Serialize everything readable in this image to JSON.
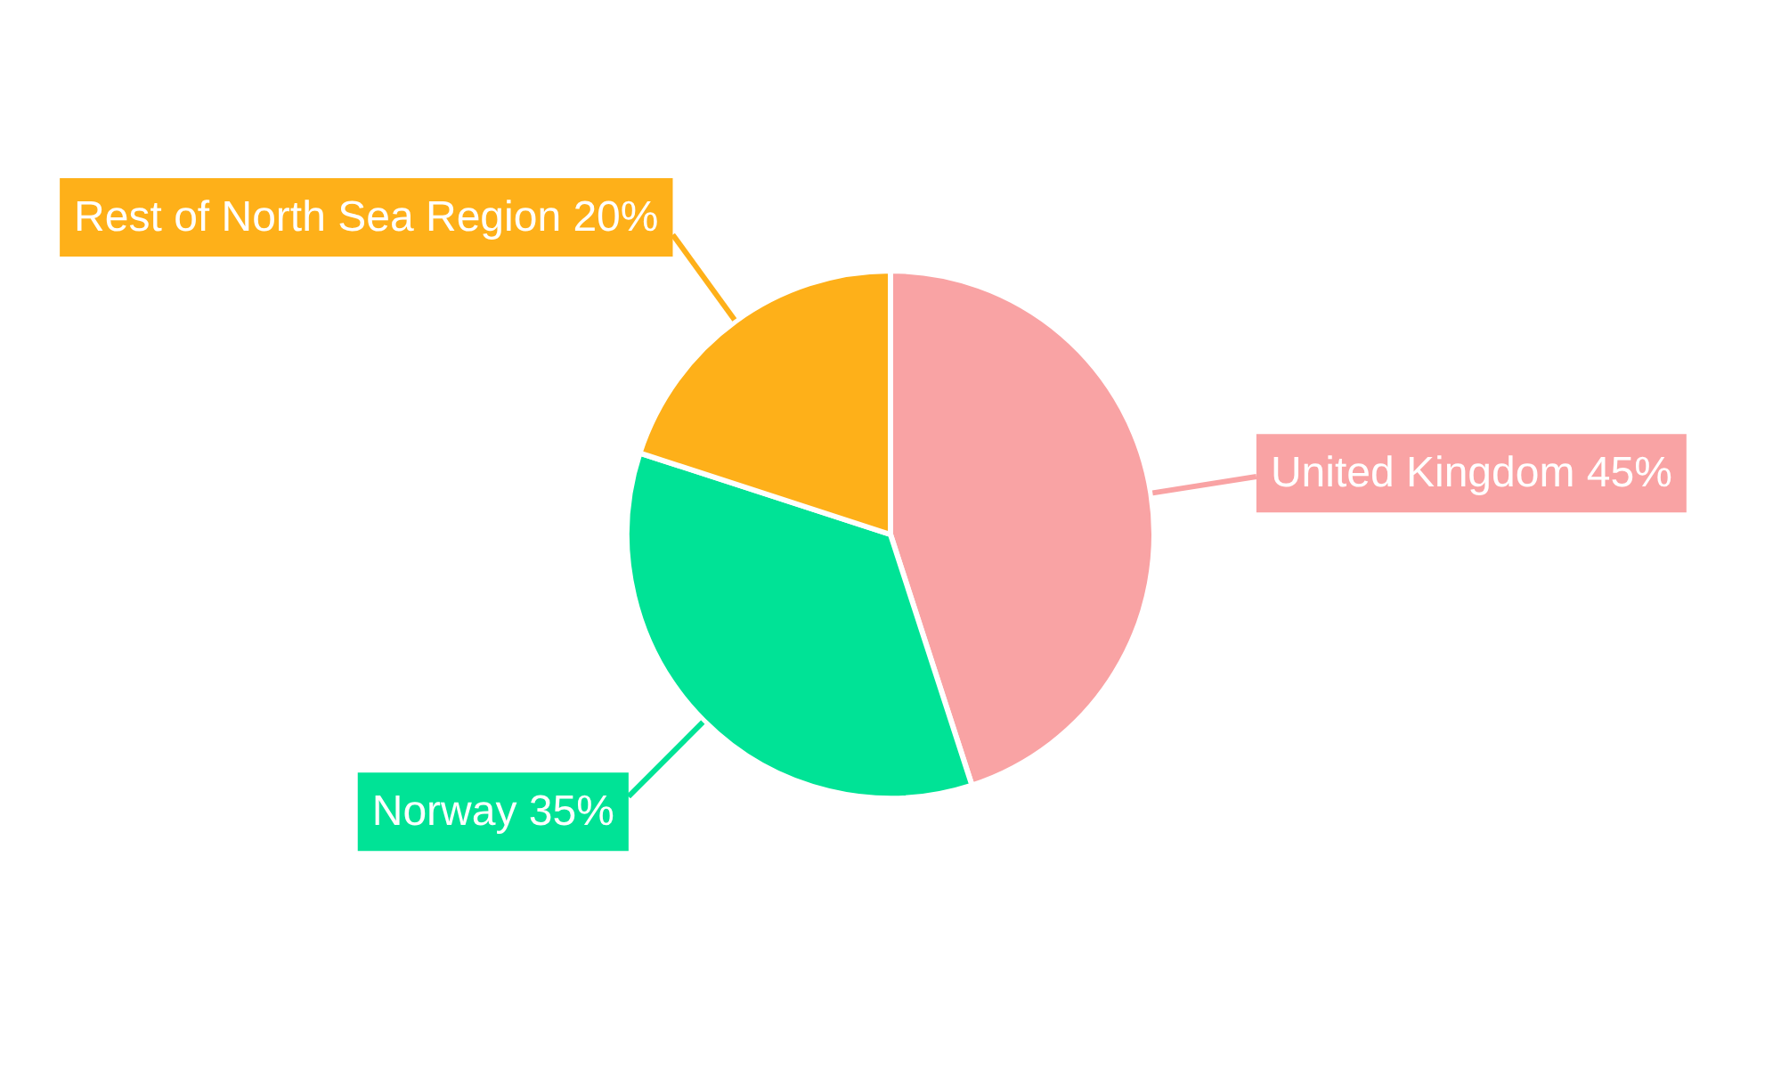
{
  "chart_data": {
    "type": "pie",
    "categories": [
      "United Kingdom",
      "Norway",
      "Rest of North Sea Region"
    ],
    "values": [
      45,
      35,
      20
    ],
    "colors": [
      "#f9a3a4",
      "#00e396",
      "#feb019"
    ],
    "value_labels": [
      "45%",
      "35%",
      "20%"
    ],
    "legend": false
  }
}
